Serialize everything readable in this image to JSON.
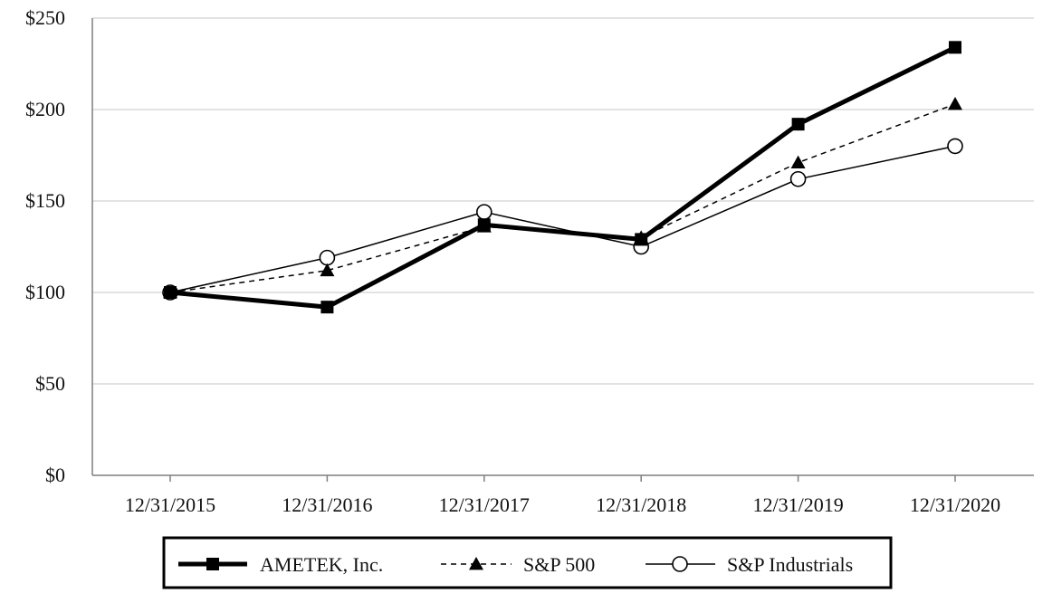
{
  "chart_data": {
    "type": "line",
    "categories": [
      "12/31/2015",
      "12/31/2016",
      "12/31/2017",
      "12/31/2018",
      "12/31/2019",
      "12/31/2020"
    ],
    "ylim": [
      0,
      250
    ],
    "yticks": [
      0,
      50,
      100,
      150,
      200,
      250
    ],
    "ytick_labels": [
      "$0",
      "$50",
      "$100",
      "$150",
      "$200",
      "$250"
    ],
    "grid": true,
    "legend_position": "bottom",
    "series": [
      {
        "name": "AMETEK, Inc.",
        "values": [
          100,
          92,
          137,
          129,
          192,
          234
        ],
        "marker": "square",
        "line": "solid-thick",
        "color": "#000000"
      },
      {
        "name": "S&P 500",
        "values": [
          100,
          112,
          136,
          130,
          171,
          203
        ],
        "marker": "triangle",
        "line": "dashed",
        "color": "#000000"
      },
      {
        "name": "S&P Industrials",
        "values": [
          100,
          119,
          144,
          125,
          162,
          180
        ],
        "marker": "open-circle",
        "line": "solid-thin",
        "color": "#000000"
      }
    ]
  }
}
